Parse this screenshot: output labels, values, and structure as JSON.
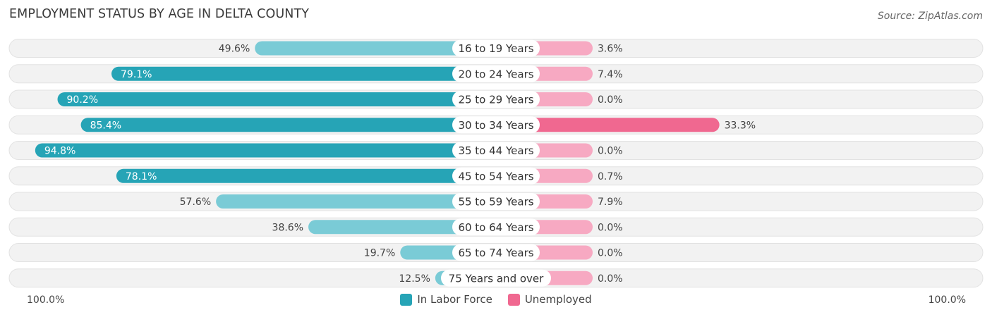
{
  "title": "EMPLOYMENT STATUS BY AGE IN DELTA COUNTY",
  "source": "Source: ZipAtlas.com",
  "colors": {
    "labor_dark": "#26a4b6",
    "labor_light": "#7acbd6",
    "unemployed_dark": "#f06890",
    "unemployed_light": "#f7a9c2",
    "row_bg": "#f2f2f2"
  },
  "chart_data": {
    "type": "bar",
    "orientation": "diverging-horizontal",
    "categories": [
      "16 to 19 Years",
      "20 to 24 Years",
      "25 to 29 Years",
      "30 to 34 Years",
      "35 to 44 Years",
      "45 to 54 Years",
      "55 to 59 Years",
      "60 to 64 Years",
      "65 to 74 Years",
      "75 Years and over"
    ],
    "series": [
      {
        "name": "In Labor Force",
        "values": [
          49.6,
          79.1,
          90.2,
          85.4,
          94.8,
          78.1,
          57.6,
          38.6,
          19.7,
          12.5
        ],
        "labels": [
          "49.6%",
          "79.1%",
          "90.2%",
          "85.4%",
          "94.8%",
          "78.1%",
          "57.6%",
          "38.6%",
          "19.7%",
          "12.5%"
        ]
      },
      {
        "name": "Unemployed",
        "values": [
          3.6,
          7.4,
          0.0,
          33.3,
          0.0,
          0.7,
          7.9,
          0.0,
          0.0,
          0.0
        ],
        "labels": [
          "3.6%",
          "7.4%",
          "0.0%",
          "33.3%",
          "0.0%",
          "0.7%",
          "7.9%",
          "0.0%",
          "0.0%",
          "0.0%"
        ]
      }
    ],
    "xlim": [
      0,
      100
    ],
    "axis_left_label": "100.0%",
    "axis_right_label": "100.0%",
    "legend_position": "bottom-center"
  }
}
